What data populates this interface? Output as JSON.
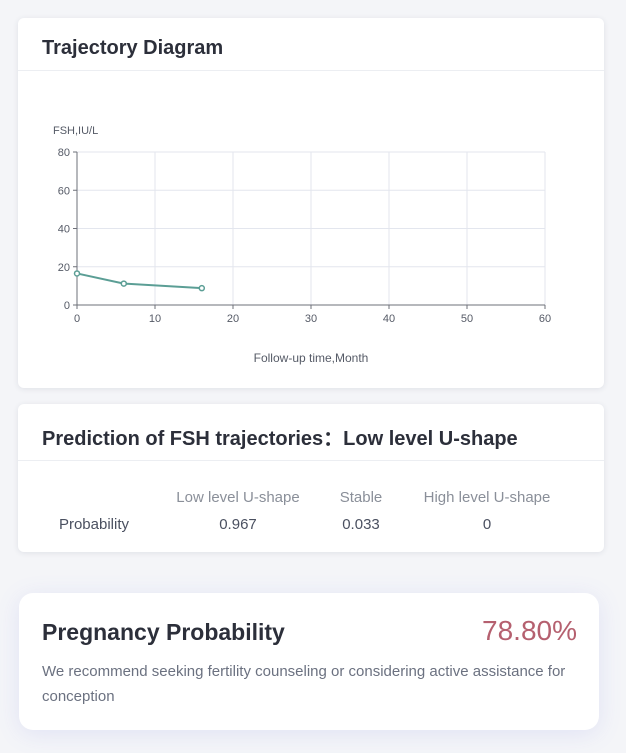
{
  "trajectory": {
    "title": "Trajectory Diagram",
    "chart_data": {
      "type": "line",
      "ylabel": "FSH,IU/L",
      "xlabel": "Follow-up time,Month",
      "xlim": [
        0,
        60
      ],
      "ylim": [
        0,
        80
      ],
      "xticks": [
        0,
        10,
        20,
        30,
        40,
        50,
        60
      ],
      "yticks": [
        0,
        20,
        40,
        60,
        80
      ],
      "grid": true,
      "series": [
        {
          "color": "#5b9e95",
          "points": [
            [
              0,
              16.5
            ],
            [
              6,
              11.2
            ],
            [
              16,
              8.8
            ]
          ]
        }
      ]
    }
  },
  "prediction": {
    "title": "Prediction of FSH trajectories：Low level U-shape",
    "headers": [
      "Low level U-shape",
      "Stable",
      "High level U-shape"
    ],
    "row_label": "Probability",
    "values": [
      "0.967",
      "0.033",
      "0"
    ]
  },
  "pregnancy": {
    "title": "Pregnancy Probability",
    "value": "78.80%",
    "advice": "We recommend seeking fertility counseling or considering active assistance for conception"
  }
}
